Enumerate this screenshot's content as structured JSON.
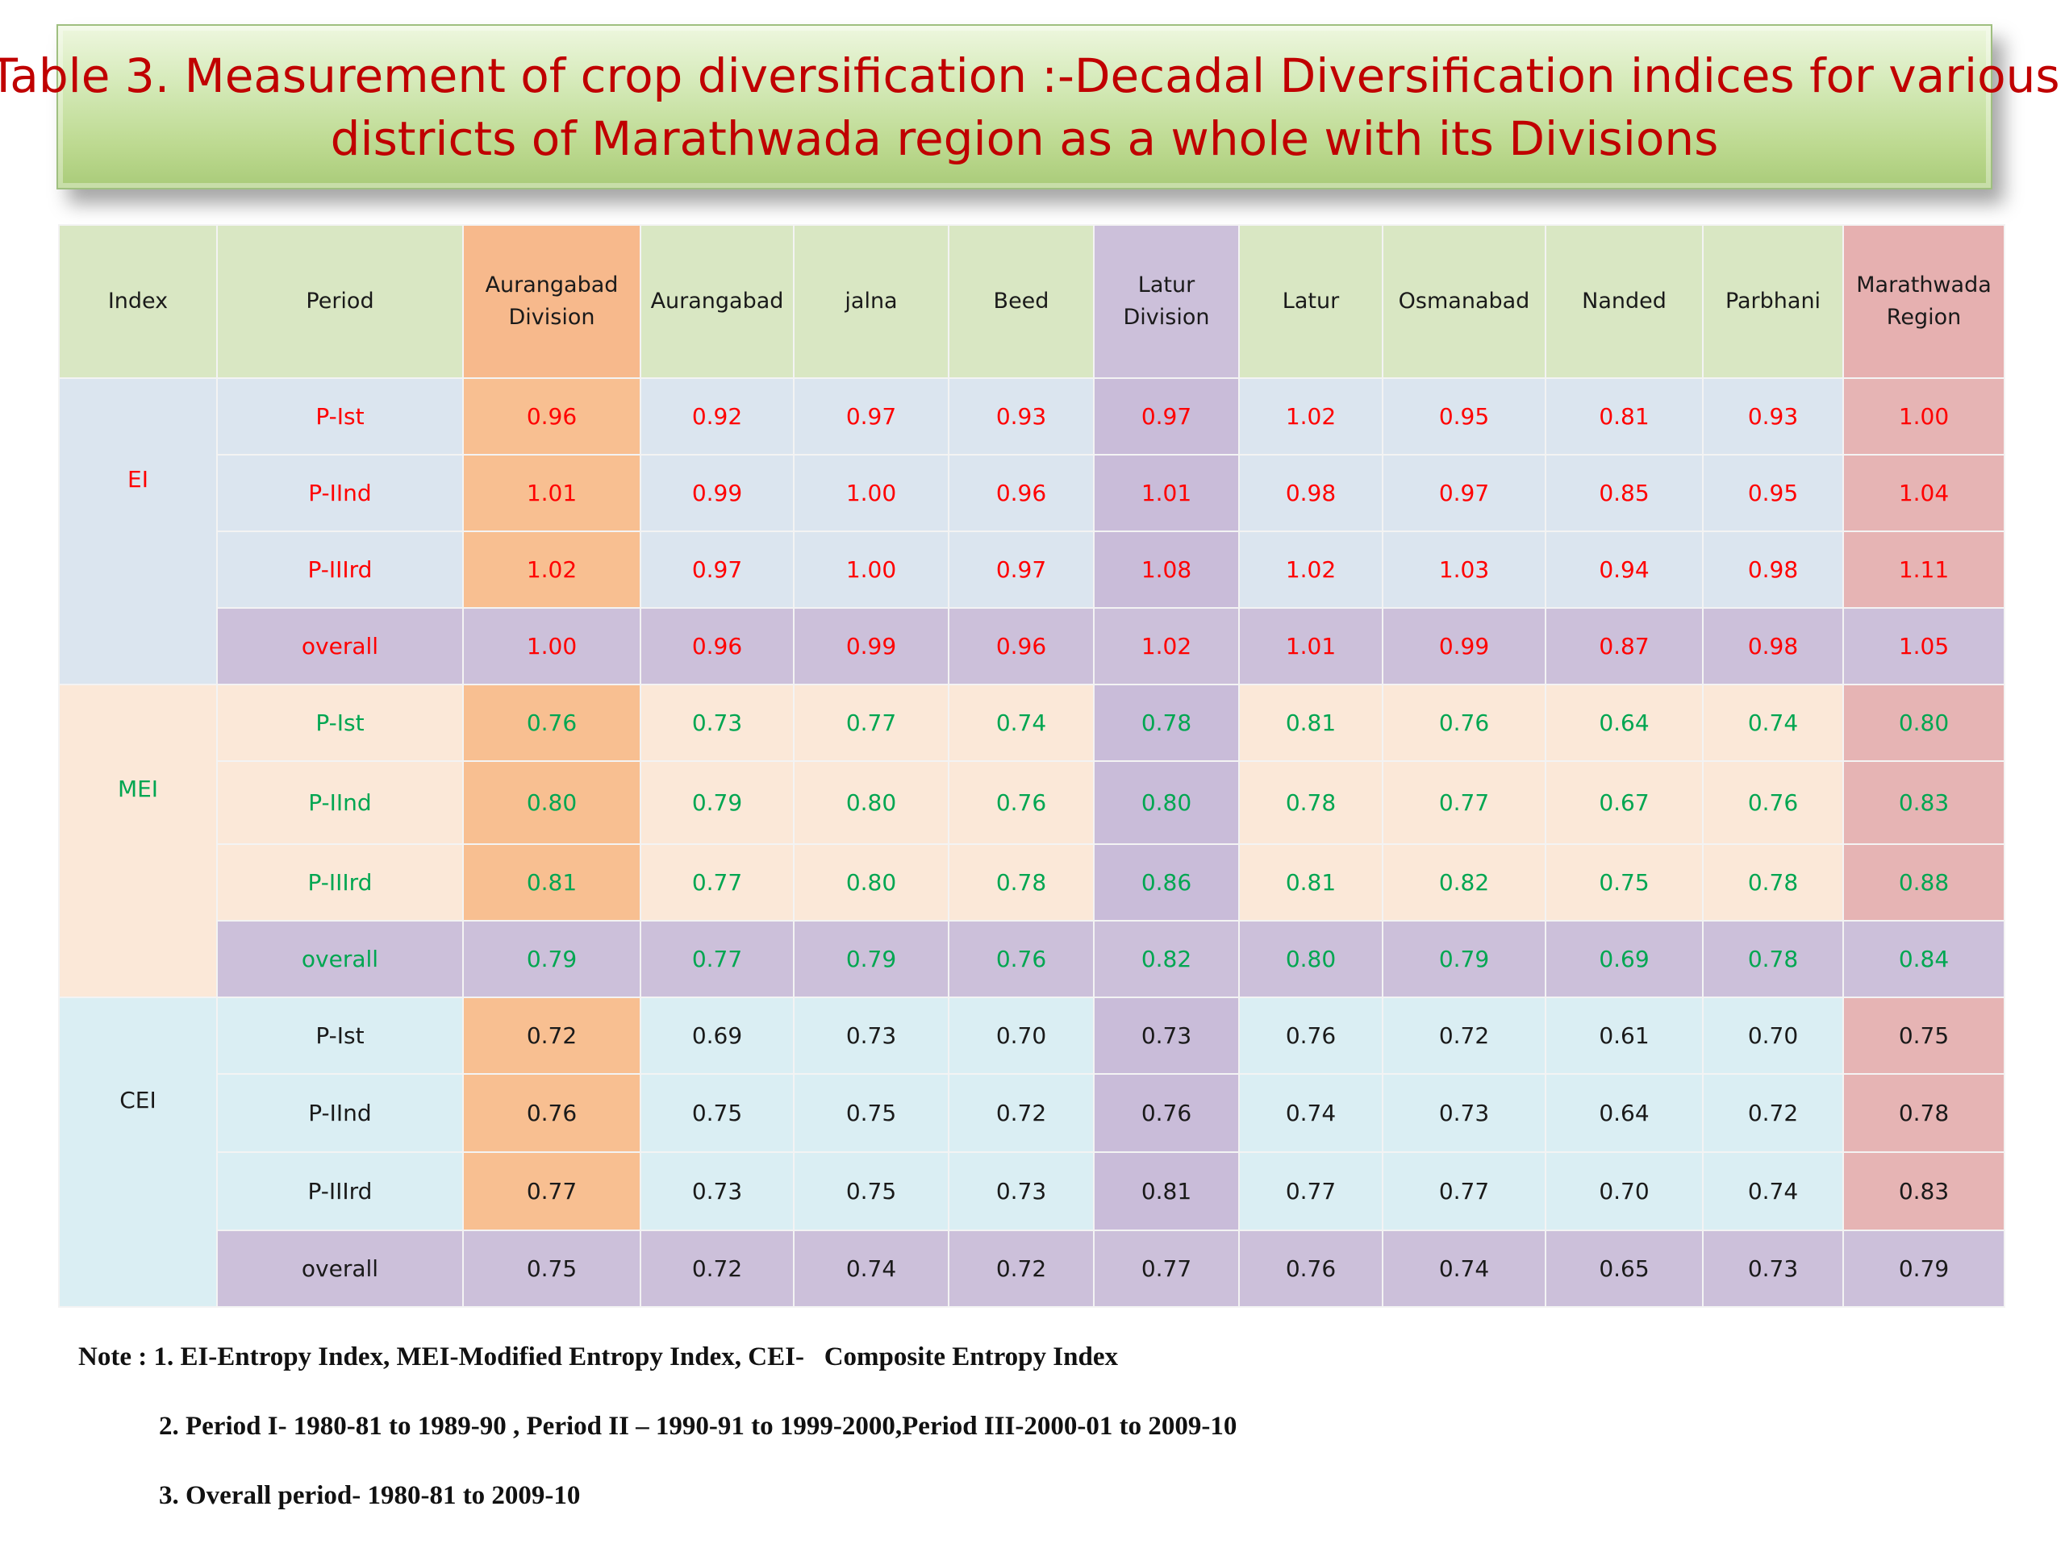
{
  "title": {
    "line1": "Table 3. Measurement of crop diversification :-Decadal Diversification indices for various",
    "line2": "districts of Marathwada region as a whole with its Divisions"
  },
  "table": {
    "headers": {
      "index": "Index",
      "period": "Period",
      "aurangabad_division_1": "Aurangabad",
      "aurangabad_division_2": "Division",
      "aurangabad": "Aurangabad",
      "jalna": "jalna",
      "beed": "Beed",
      "latur_division_1": "Latur",
      "latur_division_2": "Division",
      "latur": "Latur",
      "osmanabad": "Osmanabad",
      "nanded": "Nanded",
      "parbhani": "Parbhani",
      "marathwada_region_1": "Marathwada",
      "marathwada_region_2": "Region"
    },
    "groups": [
      {
        "index": "EI",
        "rows": [
          {
            "period": "P-Ist",
            "values": [
              "0.96",
              "0.92",
              "0.97",
              "0.93",
              "0.97",
              "1.02",
              "0.95",
              "0.81",
              "0.93",
              "1.00"
            ]
          },
          {
            "period": "P-IInd",
            "values": [
              "1.01",
              "0.99",
              "1.00",
              "0.96",
              "1.01",
              "0.98",
              "0.97",
              "0.85",
              "0.95",
              "1.04"
            ]
          },
          {
            "period": "P-IIIrd",
            "values": [
              "1.02",
              "0.97",
              "1.00",
              "0.97",
              "1.08",
              "1.02",
              "1.03",
              "0.94",
              "0.98",
              "1.11"
            ]
          },
          {
            "period": "overall",
            "values": [
              "1.00",
              "0.96",
              "0.99",
              "0.96",
              "1.02",
              "1.01",
              "0.99",
              "0.87",
              "0.98",
              "1.05"
            ]
          }
        ]
      },
      {
        "index": "MEI",
        "rows": [
          {
            "period": "P-Ist",
            "values": [
              "0.76",
              "0.73",
              "0.77",
              "0.74",
              "0.78",
              "0.81",
              "0.76",
              "0.64",
              "0.74",
              "0.80"
            ]
          },
          {
            "period": "P-IInd",
            "values": [
              "0.80",
              "0.79",
              "0.80",
              "0.76",
              "0.80",
              "0.78",
              "0.77",
              "0.67",
              "0.76",
              "0.83"
            ]
          },
          {
            "period": "P-IIIrd",
            "values": [
              "0.81",
              "0.77",
              "0.80",
              "0.78",
              "0.86",
              "0.81",
              "0.82",
              "0.75",
              "0.78",
              "0.88"
            ]
          },
          {
            "period": "overall",
            "values": [
              "0.79",
              "0.77",
              "0.79",
              "0.76",
              "0.82",
              "0.80",
              "0.79",
              "0.69",
              "0.78",
              "0.84"
            ]
          }
        ]
      },
      {
        "index": "CEI",
        "rows": [
          {
            "period": "P-Ist",
            "values": [
              "0.72",
              "0.69",
              "0.73",
              "0.70",
              "0.73",
              "0.76",
              "0.72",
              "0.61",
              "0.70",
              "0.75"
            ]
          },
          {
            "period": "P-IInd",
            "values": [
              "0.76",
              "0.75",
              "0.75",
              "0.72",
              "0.76",
              "0.74",
              "0.73",
              "0.64",
              "0.72",
              "0.78"
            ]
          },
          {
            "period": "P-IIIrd",
            "values": [
              "0.77",
              "0.73",
              "0.75",
              "0.73",
              "0.81",
              "0.77",
              "0.77",
              "0.70",
              "0.74",
              "0.83"
            ]
          },
          {
            "period": "overall",
            "values": [
              "0.75",
              "0.72",
              "0.74",
              "0.72",
              "0.77",
              "0.76",
              "0.74",
              "0.65",
              "0.73",
              "0.79"
            ]
          }
        ]
      }
    ]
  },
  "notes": {
    "note1": "Note : 1. EI-Entropy Index, MEI-Modified Entropy Index, CEI-   Composite Entropy Index",
    "note2": "2. Period I- 1980-81 to 1989-90 , Period II – 1990-91 to 1999-2000,Period III-2000-01 to 2009-10",
    "note3": "3. Overall period- 1980-81 to 2009-10"
  },
  "colors": {
    "ei_text": "#ff0000",
    "mei_text": "#00a651",
    "cei_text": "#1a1a1a",
    "title_text": "#c00000"
  }
}
